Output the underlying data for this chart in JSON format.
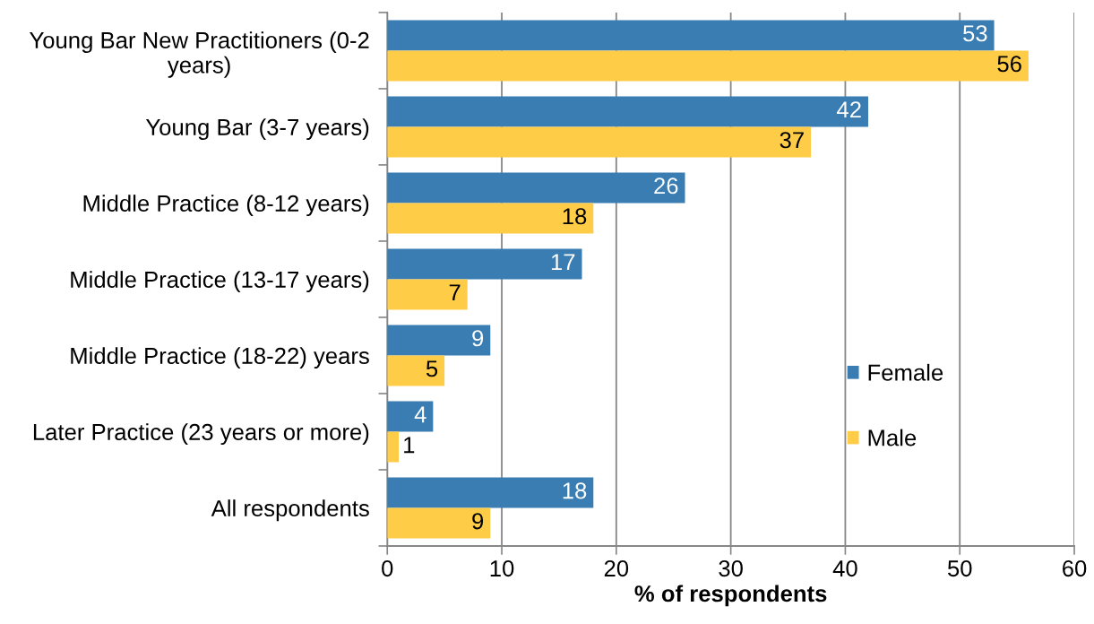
{
  "chart_data": {
    "type": "bar",
    "orientation": "horizontal",
    "categories": [
      "Young Bar New Practitioners (0-2\nyears)",
      "Young Bar (3-7 years)",
      "Middle Practice (8-12 years)",
      "Middle Practice (13-17 years)",
      "Middle Practice (18-22) years",
      "Later Practice (23 years or more)",
      "All respondents"
    ],
    "series": [
      {
        "name": "Female",
        "color": "#3a7db2",
        "values": [
          53,
          42,
          26,
          17,
          9,
          4,
          18
        ]
      },
      {
        "name": "Male",
        "color": "#fecc46",
        "values": [
          56,
          37,
          18,
          7,
          5,
          1,
          9
        ]
      }
    ],
    "xlabel": "% of respondents",
    "xlim": [
      0,
      60
    ],
    "xticks": [
      0,
      10,
      20,
      30,
      40,
      50,
      60
    ],
    "grid": "x",
    "legend": "bottom right",
    "data_labels": true
  }
}
